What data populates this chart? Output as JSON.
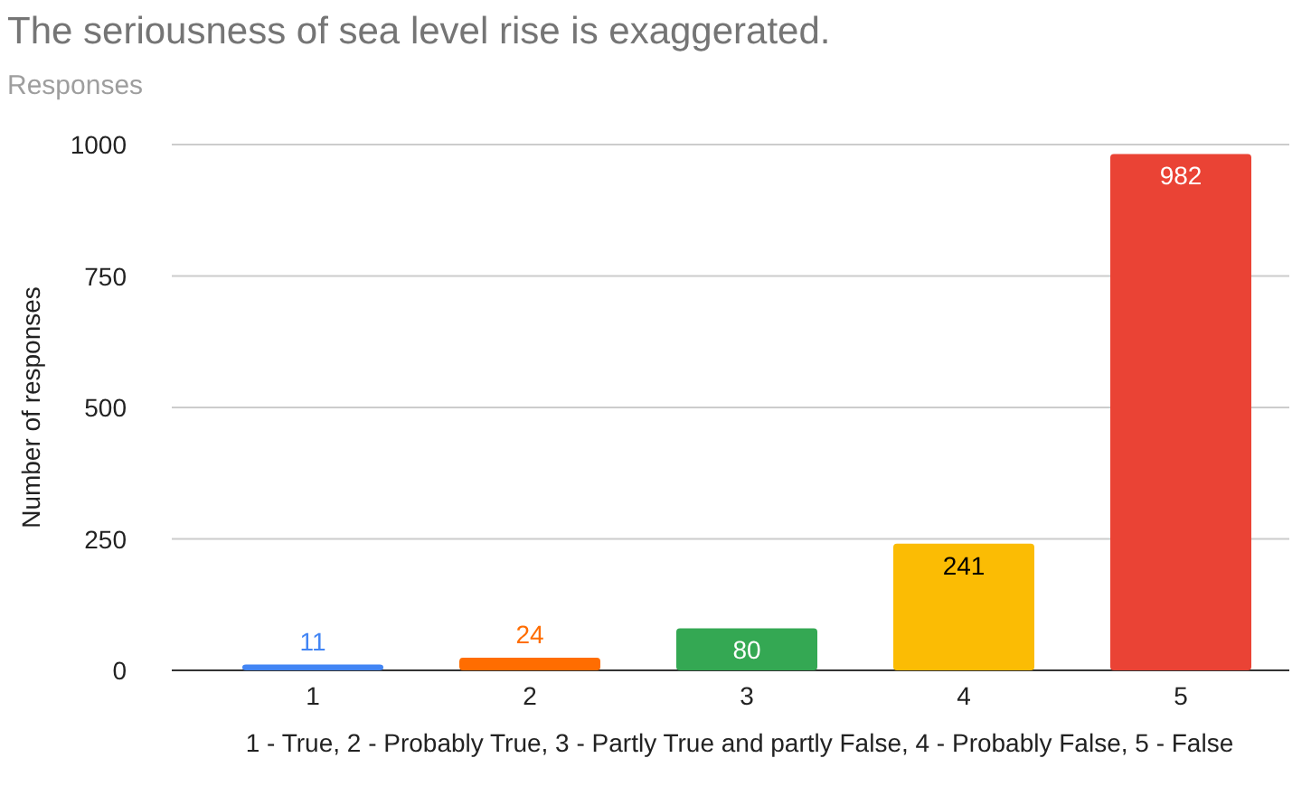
{
  "chart_data": {
    "type": "bar",
    "title": "The seriousness of sea level rise is exaggerated.",
    "subtitle": "Responses",
    "xlabel": "1 - True, 2 - Probably True, 3 - Partly True and partly False, 4 - Probably False, 5 - False",
    "ylabel": "Number of responses",
    "categories": [
      "1",
      "2",
      "3",
      "4",
      "5"
    ],
    "values": [
      11,
      24,
      80,
      241,
      982
    ],
    "colors": [
      "#4285f4",
      "#ff6d01",
      "#34a853",
      "#fbbc04",
      "#ea4335"
    ],
    "ylim": [
      0,
      1000
    ],
    "yticks": [
      0,
      250,
      500,
      750,
      1000
    ],
    "grid": "y",
    "data_labels": true
  }
}
